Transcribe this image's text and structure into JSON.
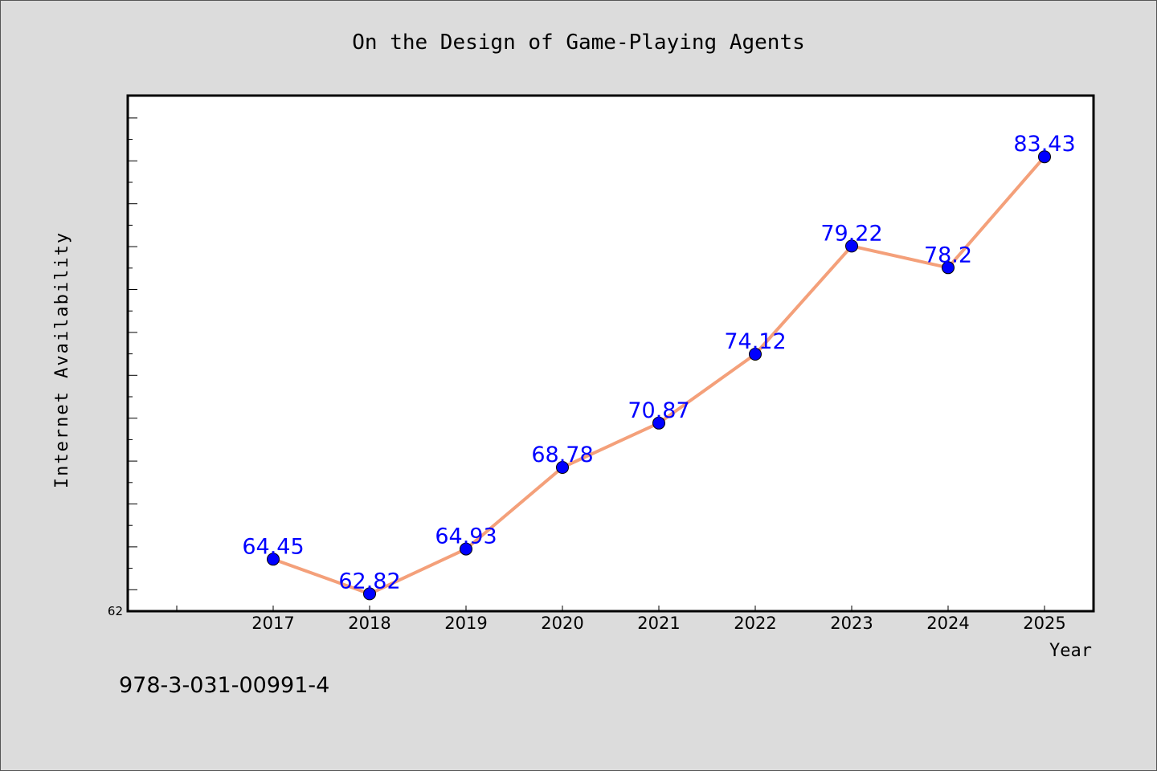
{
  "chart_data": {
    "type": "line",
    "title": "On the Design of Game-Playing Agents",
    "xlabel": "Year",
    "ylabel": "Internet Availability",
    "categories": [
      "2017",
      "2018",
      "2019",
      "2020",
      "2021",
      "2022",
      "2023",
      "2024",
      "2025"
    ],
    "series": [
      {
        "values": [
          64.45,
          62.82,
          64.93,
          68.78,
          70.87,
          74.12,
          79.22,
          78.2,
          83.43
        ],
        "labels": [
          "64.45",
          "62.82",
          "64.93",
          "68.78",
          "70.87",
          "74.12",
          "79.22",
          "78.2",
          "83.43"
        ]
      }
    ],
    "y_tick_labels": [
      "62"
    ],
    "ylim": [
      62,
      86
    ],
    "grid": false,
    "colors": {
      "line": "#f4a07a",
      "marker": "#0000ff",
      "data_label": "#0000ff"
    }
  },
  "footer": {
    "isbn": "978-3-031-00991-4"
  }
}
